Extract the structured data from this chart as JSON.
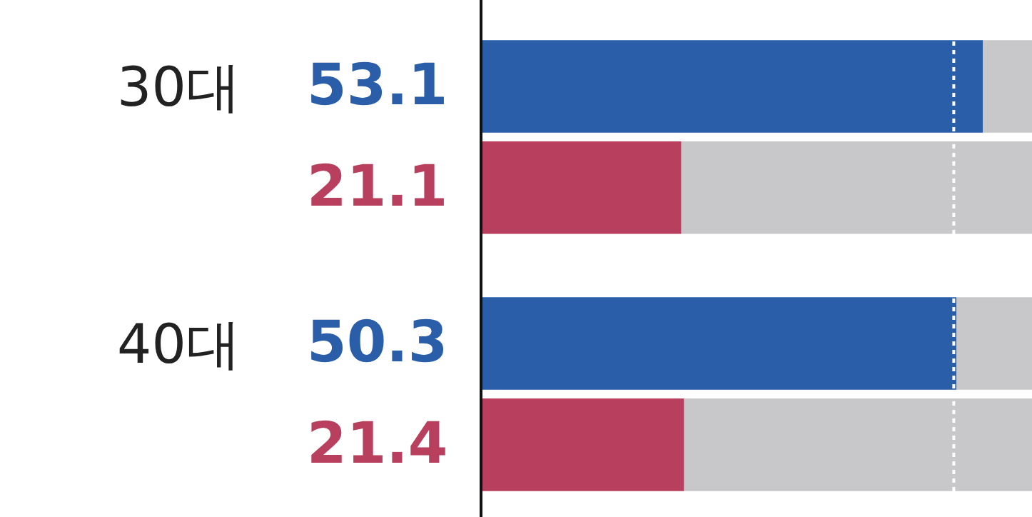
{
  "chart_data": {
    "type": "bar",
    "orientation": "horizontal",
    "stacked": true,
    "categories": [
      "30대",
      null,
      "40대",
      null
    ],
    "series": [
      {
        "colors": [
          "#2a5ea8",
          "#b8405e",
          "#2a5ea8",
          "#b8405e"
        ],
        "values": [
          53.1,
          21.1,
          50.3,
          21.4
        ],
        "value_labels": [
          "53.1",
          "21.1",
          "50.3",
          "21.4"
        ]
      },
      {
        "color": "#c8c8ca",
        "values": [
          5.2,
          37.2,
          8.0,
          36.9
        ]
      }
    ],
    "xlim": [
      0,
      58.3
    ],
    "tick_labels": "y",
    "legend": false,
    "ref_lines": [
      {
        "axis": "x",
        "value": 50,
        "color": "#ffffff",
        "line_style": "dotted"
      }
    ]
  }
}
